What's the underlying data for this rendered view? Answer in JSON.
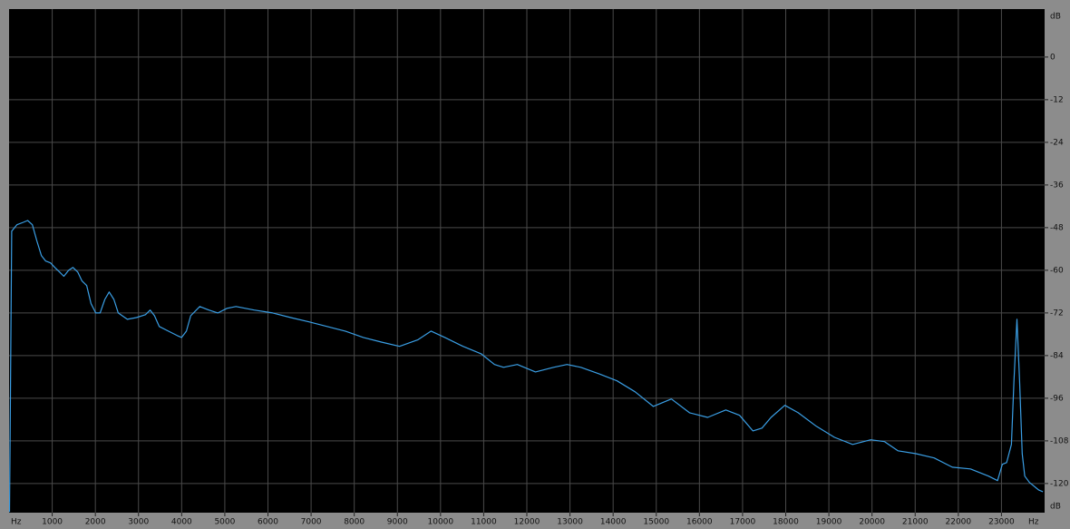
{
  "chart_data": {
    "type": "line",
    "x_label": "Hz",
    "y_label": "dB",
    "x": [
      10,
      60,
      180,
      330,
      430,
      540,
      640,
      750,
      850,
      960,
      1060,
      1170,
      1270,
      1380,
      1480,
      1590,
      1690,
      1800,
      1900,
      2010,
      2110,
      2220,
      2320,
      2430,
      2530,
      2740,
      2950,
      3160,
      3270,
      3370,
      3480,
      3690,
      3900,
      4000,
      4110,
      4210,
      4420,
      4630,
      4840,
      5050,
      5260,
      5680,
      6110,
      6530,
      6950,
      7370,
      7790,
      8210,
      8630,
      9050,
      9470,
      9780,
      10100,
      10520,
      10940,
      11250,
      11460,
      11780,
      12200,
      12620,
      12930,
      13250,
      13670,
      14090,
      14510,
      14930,
      15350,
      15770,
      16190,
      16610,
      16930,
      17240,
      17450,
      17660,
      17980,
      18290,
      18710,
      19130,
      19550,
      19970,
      20290,
      20600,
      21020,
      21440,
      21860,
      22280,
      22700,
      22910,
      23020,
      23120,
      23230,
      23290,
      23360,
      23420,
      23480,
      23540,
      23650,
      23860,
      23960
    ],
    "values": [
      -128,
      -49,
      -47.2,
      -46.5,
      -46,
      -47.2,
      -51.6,
      -55.9,
      -57.4,
      -57.9,
      -59.2,
      -60.5,
      -61.7,
      -60,
      -59.2,
      -60.5,
      -63,
      -64.3,
      -69.4,
      -72,
      -72,
      -68.2,
      -66.1,
      -68.2,
      -72,
      -73.8,
      -73.3,
      -72.5,
      -71.2,
      -72.8,
      -75.8,
      -77.1,
      -78.4,
      -78.9,
      -77.1,
      -72.8,
      -70.2,
      -71.2,
      -72,
      -70.7,
      -70.2,
      -71.2,
      -72,
      -73.3,
      -74.5,
      -75.8,
      -77.1,
      -78.9,
      -80.2,
      -81.4,
      -79.6,
      -77.1,
      -78.9,
      -81.4,
      -83.5,
      -86.5,
      -87.3,
      -86.5,
      -88.6,
      -87.3,
      -86.5,
      -87.3,
      -89.1,
      -91.1,
      -94.2,
      -98.3,
      -96.2,
      -100.1,
      -101.4,
      -99.3,
      -100.8,
      -105.2,
      -104.4,
      -101.4,
      -98,
      -100.1,
      -103.9,
      -107,
      -109,
      -107.7,
      -108.2,
      -110.8,
      -111.6,
      -112.8,
      -115.4,
      -115.9,
      -117.9,
      -119.2,
      -114.6,
      -114.1,
      -109,
      -91.1,
      -73.8,
      -91.1,
      -111.6,
      -117.9,
      -119.7,
      -121.8,
      -122.3
    ],
    "color": "#3a9ee4",
    "xlim": [
      0,
      24000
    ],
    "xticks": [
      1000,
      2000,
      3000,
      4000,
      5000,
      6000,
      7000,
      8000,
      9000,
      10000,
      11000,
      12000,
      13000,
      14000,
      15000,
      16000,
      17000,
      18000,
      19000,
      20000,
      21000,
      22000,
      23000
    ],
    "ylim": [
      -128.2,
      13.5
    ],
    "yticks": [
      0,
      -12,
      -24,
      -36,
      -48,
      -60,
      -72,
      -84,
      -96,
      -108,
      -120
    ],
    "grid": true
  }
}
